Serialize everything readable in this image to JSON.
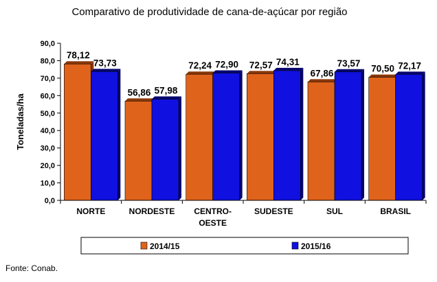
{
  "chart_data": {
    "type": "bar",
    "title": "Comparativo de produtividade de cana-de-açúcar por região",
    "ylabel": "Toneladas/ha",
    "xlabel": "",
    "ylim": [
      0,
      90
    ],
    "yticks": [
      0,
      10,
      20,
      30,
      40,
      50,
      60,
      70,
      80,
      90
    ],
    "ytick_labels": [
      "0,0",
      "10,0",
      "20,0",
      "30,0",
      "40,0",
      "50,0",
      "60,0",
      "70,0",
      "80,0",
      "90,0"
    ],
    "categories": [
      [
        "NORTE"
      ],
      [
        "NORDESTE"
      ],
      [
        "CENTRO-",
        "OESTE"
      ],
      [
        "SUDESTE"
      ],
      [
        "SUL"
      ],
      [
        "BRASIL"
      ]
    ],
    "series": [
      {
        "name": "2014/15",
        "color": "#e0631c",
        "shade": "#8a3708",
        "values": [
          78.12,
          56.86,
          72.24,
          72.57,
          67.86,
          70.5
        ],
        "labels": [
          "78,12",
          "56,86",
          "72,24",
          "72,57",
          "67,86",
          "70,50"
        ]
      },
      {
        "name": "2015/16",
        "color": "#1010e0",
        "shade": "#06066e",
        "values": [
          73.73,
          57.98,
          72.9,
          74.31,
          73.57,
          72.17
        ],
        "labels": [
          "73,73",
          "57,98",
          "72,90",
          "74,31",
          "73,57",
          "72,17"
        ]
      }
    ],
    "grid": false,
    "legend_position": "bottom"
  },
  "source": "Fonte: Conab."
}
